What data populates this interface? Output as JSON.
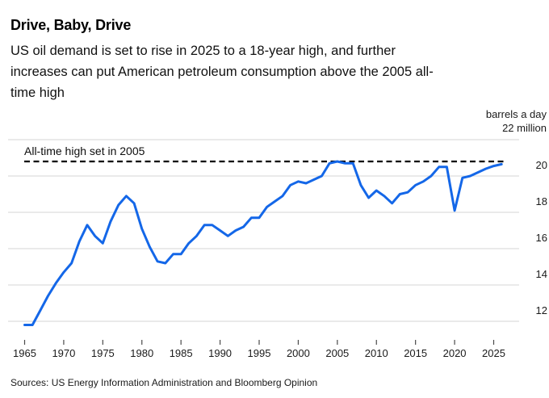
{
  "header": {
    "title": "Drive, Baby, Drive",
    "subtitle_lines": [
      "US oil demand is set to rise in 2025 to a 18-year high, and further",
      "increases can put American petroleum consumption above the 2005 all-",
      "time high"
    ]
  },
  "footer": {
    "sources": "Sources: US Energy Information Administration and Bloomberg Opinion"
  },
  "chart_data": {
    "type": "line",
    "title": "Drive, Baby, Drive",
    "y_axis": {
      "unit_lines": [
        "barrels a day",
        "22 million"
      ],
      "ticks": [
        20,
        18,
        16,
        14,
        12
      ],
      "gridline_values": [
        12,
        14,
        16,
        18,
        20,
        22
      ],
      "range": [
        11.2,
        22
      ],
      "grid": true
    },
    "x_axis": {
      "ticks": [
        1965,
        1970,
        1975,
        1980,
        1985,
        1990,
        1995,
        2000,
        2005,
        2010,
        2015,
        2020,
        2025
      ],
      "range": [
        1965,
        2026
      ]
    },
    "annotation": {
      "label": "All-time high set in 2005",
      "value": 20.8,
      "style": "dashed"
    },
    "colors": {
      "line": "#1467e8",
      "gridline": "#d6d6d6",
      "dashed": "#000000",
      "tick": "#4a4a4a"
    },
    "series": [
      {
        "name": "US oil demand (million barrels a day)",
        "color": "#1467e8",
        "years": [
          1965,
          1966,
          1967,
          1968,
          1969,
          1970,
          1971,
          1972,
          1973,
          1974,
          1975,
          1976,
          1977,
          1978,
          1979,
          1980,
          1981,
          1982,
          1983,
          1984,
          1985,
          1986,
          1987,
          1988,
          1989,
          1990,
          1991,
          1992,
          1993,
          1994,
          1995,
          1996,
          1997,
          1998,
          1999,
          2000,
          2001,
          2002,
          2003,
          2004,
          2005,
          2006,
          2007,
          2008,
          2009,
          2010,
          2011,
          2012,
          2013,
          2014,
          2015,
          2016,
          2017,
          2018,
          2019,
          2020,
          2021,
          2022,
          2023,
          2024,
          2025,
          2026
        ],
        "values": [
          11.8,
          11.8,
          12.6,
          13.4,
          14.1,
          14.7,
          15.2,
          16.4,
          17.3,
          16.7,
          16.3,
          17.5,
          18.4,
          18.9,
          18.5,
          17.1,
          16.1,
          15.3,
          15.2,
          15.7,
          15.7,
          16.3,
          16.7,
          17.3,
          17.3,
          17.0,
          16.7,
          17.0,
          17.2,
          17.7,
          17.7,
          18.3,
          18.6,
          18.9,
          19.5,
          19.7,
          19.6,
          19.8,
          20.0,
          20.7,
          20.8,
          20.7,
          20.7,
          19.5,
          18.8,
          19.2,
          18.9,
          18.5,
          19.0,
          19.1,
          19.5,
          19.7,
          20.0,
          20.5,
          20.5,
          18.1,
          19.9,
          20.0,
          20.2,
          20.4,
          20.55,
          20.65
        ]
      }
    ]
  }
}
